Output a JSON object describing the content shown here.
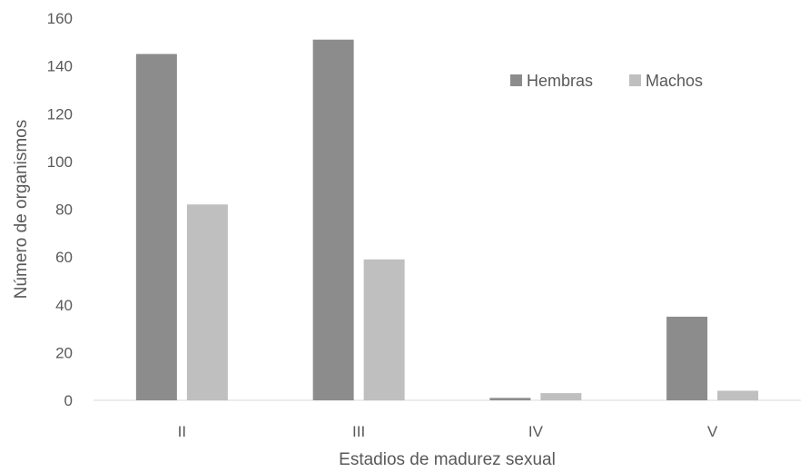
{
  "chart_data": {
    "type": "bar",
    "categories": [
      "II",
      "III",
      "IV",
      "V"
    ],
    "series": [
      {
        "name": "Hembras",
        "values": [
          145,
          151,
          1,
          35
        ],
        "color": "#8c8c8c"
      },
      {
        "name": "Machos",
        "values": [
          82,
          59,
          3,
          4
        ],
        "color": "#bfbfbf"
      }
    ],
    "xlabel": "Estadios de madurez sexual",
    "ylabel": "Número de organismos",
    "ylim": [
      0,
      160
    ],
    "yticks": [
      0,
      20,
      40,
      60,
      80,
      100,
      120,
      140,
      160
    ],
    "grid": false,
    "legend_position": "top-right"
  }
}
